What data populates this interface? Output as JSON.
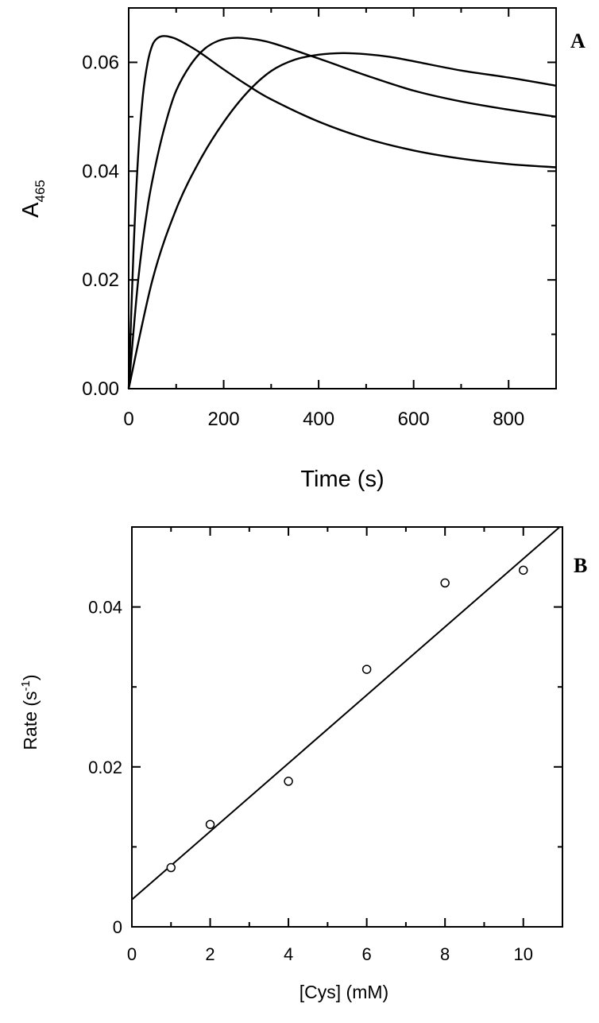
{
  "chart_data": [
    {
      "panel_label": "A",
      "type": "line",
      "title": "",
      "xlabel": "Time (s)",
      "ylabel": {
        "base": "A",
        "subscript": "465"
      },
      "xlim": [
        0,
        900
      ],
      "ylim": [
        0,
        0.07
      ],
      "xticks": [
        0,
        200,
        400,
        600,
        800
      ],
      "xtick_labels": [
        "0",
        "200",
        "400",
        "600",
        "800"
      ],
      "yticks": [
        0,
        0.02,
        0.04,
        0.06
      ],
      "ytick_labels": [
        "0.00",
        "0.02",
        "0.04",
        "0.06"
      ],
      "grid": false,
      "series": [
        {
          "x": [
            0,
            10,
            20,
            30,
            40,
            50,
            60,
            70,
            80,
            90,
            100,
            120,
            150,
            200,
            250,
            300,
            400,
            500,
            600,
            700,
            800,
            900
          ],
          "values": [
            0,
            0.025,
            0.043,
            0.054,
            0.06,
            0.0632,
            0.0644,
            0.0648,
            0.0648,
            0.0646,
            0.0643,
            0.0634,
            0.0618,
            0.0587,
            0.0558,
            0.0532,
            0.0491,
            0.046,
            0.0438,
            0.0423,
            0.0413,
            0.0407
          ]
        },
        {
          "x": [
            0,
            20,
            40,
            60,
            80,
            100,
            130,
            160,
            190,
            220,
            250,
            300,
            400,
            500,
            600,
            700,
            800,
            900
          ],
          "values": [
            0,
            0.02,
            0.0335,
            0.0425,
            0.0495,
            0.0548,
            0.0595,
            0.0625,
            0.064,
            0.0645,
            0.0644,
            0.0636,
            0.0607,
            0.0576,
            0.0548,
            0.0528,
            0.0513,
            0.05
          ]
        },
        {
          "x": [
            0,
            50,
            100,
            150,
            200,
            250,
            300,
            350,
            400,
            450,
            500,
            550,
            600,
            700,
            800,
            900
          ],
          "values": [
            0,
            0.02,
            0.033,
            0.042,
            0.049,
            0.0545,
            0.0584,
            0.0605,
            0.0614,
            0.0617,
            0.0615,
            0.061,
            0.0602,
            0.0585,
            0.0572,
            0.0557
          ]
        }
      ]
    },
    {
      "panel_label": "B",
      "type": "scatter",
      "title": "",
      "xlabel": "[Cys] (mM)",
      "ylabel": {
        "base": "Rate (s",
        "superscript": "-1",
        "suffix": ")"
      },
      "xlim": [
        0,
        11
      ],
      "ylim": [
        0,
        0.05
      ],
      "xticks": [
        0,
        2,
        4,
        6,
        8,
        10
      ],
      "xtick_labels": [
        "0",
        "2",
        "4",
        "6",
        "8",
        "10"
      ],
      "yticks": [
        0,
        0.02,
        0.04
      ],
      "ytick_labels": [
        "0",
        "0.02",
        "0.04"
      ],
      "grid": false,
      "points": {
        "x": [
          1,
          2,
          4,
          6,
          8,
          10
        ],
        "y": [
          0.0074,
          0.0128,
          0.0182,
          0.0322,
          0.043,
          0.0446
        ]
      },
      "fit_line": {
        "x": [
          0,
          11
        ],
        "y": [
          0.0034,
          0.0503
        ]
      }
    }
  ]
}
